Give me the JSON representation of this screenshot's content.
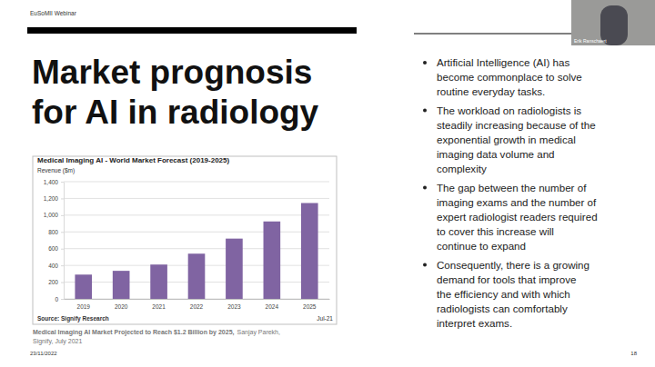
{
  "chart_data": {
    "type": "bar",
    "title": "Medical Imaging AI - World Market Forecast (2019-2025)",
    "y_label": "Revenue ($m)",
    "annotations": [
      "Source: Signify Research",
      "Jul-21"
    ],
    "categories": [
      "2019",
      "2020",
      "2021",
      "2022",
      "2023",
      "2024",
      "2025"
    ],
    "values": [
      290,
      335,
      410,
      540,
      720,
      925,
      1145
    ],
    "color": "#8064a2",
    "ylim": [
      0,
      1400
    ],
    "yticks": [
      0,
      200,
      400,
      600,
      800,
      {
        "value": 1000,
        "label": "1,000"
      },
      {
        "value": 1200,
        "label": "1,200"
      },
      {
        "value": 1400,
        "label": "1,400"
      }
    ],
    "grid": true
  },
  "slide": {
    "header": "EuSoMII Webinar",
    "title_lines": [
      "Market prognosis",
      "for AI in radiology"
    ],
    "caption": {
      "headline": "Medical Imaging AI Market Projected to Reach $1.2 Billion by 2025,",
      "credit": [
        "Sanjay Parekh,",
        "Signify, July 2021"
      ]
    },
    "bullets": [
      [
        "Artificial Intelligence (AI) has",
        "become commonplace to solve",
        "routine everyday tasks."
      ],
      [
        "The workload on radiologists is",
        "steadily increasing because of the",
        "exponential growth in medical",
        "imaging data volume and",
        "complexity"
      ],
      [
        "The gap between the number of",
        "imaging exams and the number of",
        "expert radiologist readers required",
        "to cover this increase will",
        "continue to expand"
      ],
      [
        "Consequently, there is a growing",
        "demand for tools that improve",
        "the efficiency and with which",
        "radiologists can comfortably",
        "interpret exams."
      ]
    ],
    "speaker": "Erik Ranschaert",
    "date": "23/11/2022",
    "page": "18"
  }
}
